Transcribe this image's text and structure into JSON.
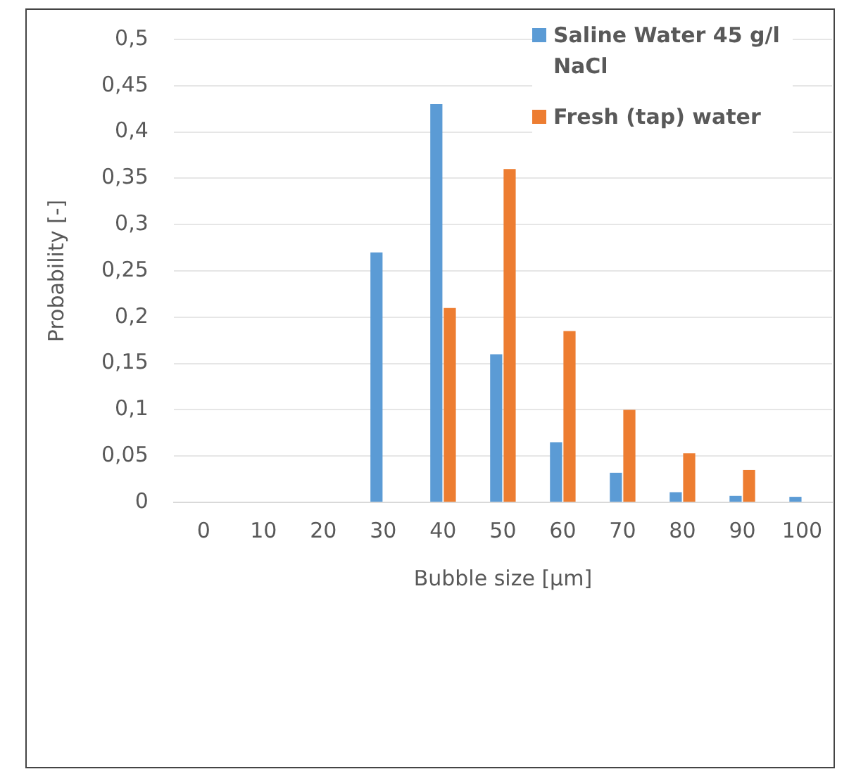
{
  "chart_data": {
    "type": "bar",
    "xlabel": "Bubble size [µm]",
    "ylabel": "Probability [-]",
    "categories": [
      "0",
      "10",
      "20",
      "30",
      "40",
      "50",
      "60",
      "70",
      "80",
      "90",
      "100"
    ],
    "series": [
      {
        "name": "Saline Water 45 g/l NaCl",
        "color": "#5b9bd5",
        "values": [
          0,
          0,
          0,
          0.27,
          0.43,
          0.16,
          0.065,
          0.032,
          0.011,
          0.007,
          0.006
        ]
      },
      {
        "name": "Fresh (tap) water",
        "color": "#ed7d31",
        "values": [
          0,
          0,
          0,
          0,
          0.21,
          0.36,
          0.185,
          0.1,
          0.053,
          0.035,
          0
        ]
      }
    ],
    "ylim": [
      0,
      0.5
    ],
    "yticks": [
      {
        "value": 0,
        "label": "0"
      },
      {
        "value": 0.05,
        "label": "0,05"
      },
      {
        "value": 0.1,
        "label": "0,1"
      },
      {
        "value": 0.15,
        "label": "0,15"
      },
      {
        "value": 0.2,
        "label": "0,2"
      },
      {
        "value": 0.25,
        "label": "0,25"
      },
      {
        "value": 0.3,
        "label": "0,3"
      },
      {
        "value": 0.35,
        "label": "0,35"
      },
      {
        "value": 0.4,
        "label": "0,4"
      },
      {
        "value": 0.45,
        "label": "0,45"
      },
      {
        "value": 0.5,
        "label": "0,5"
      }
    ],
    "grid": "y",
    "legend": "top right"
  }
}
